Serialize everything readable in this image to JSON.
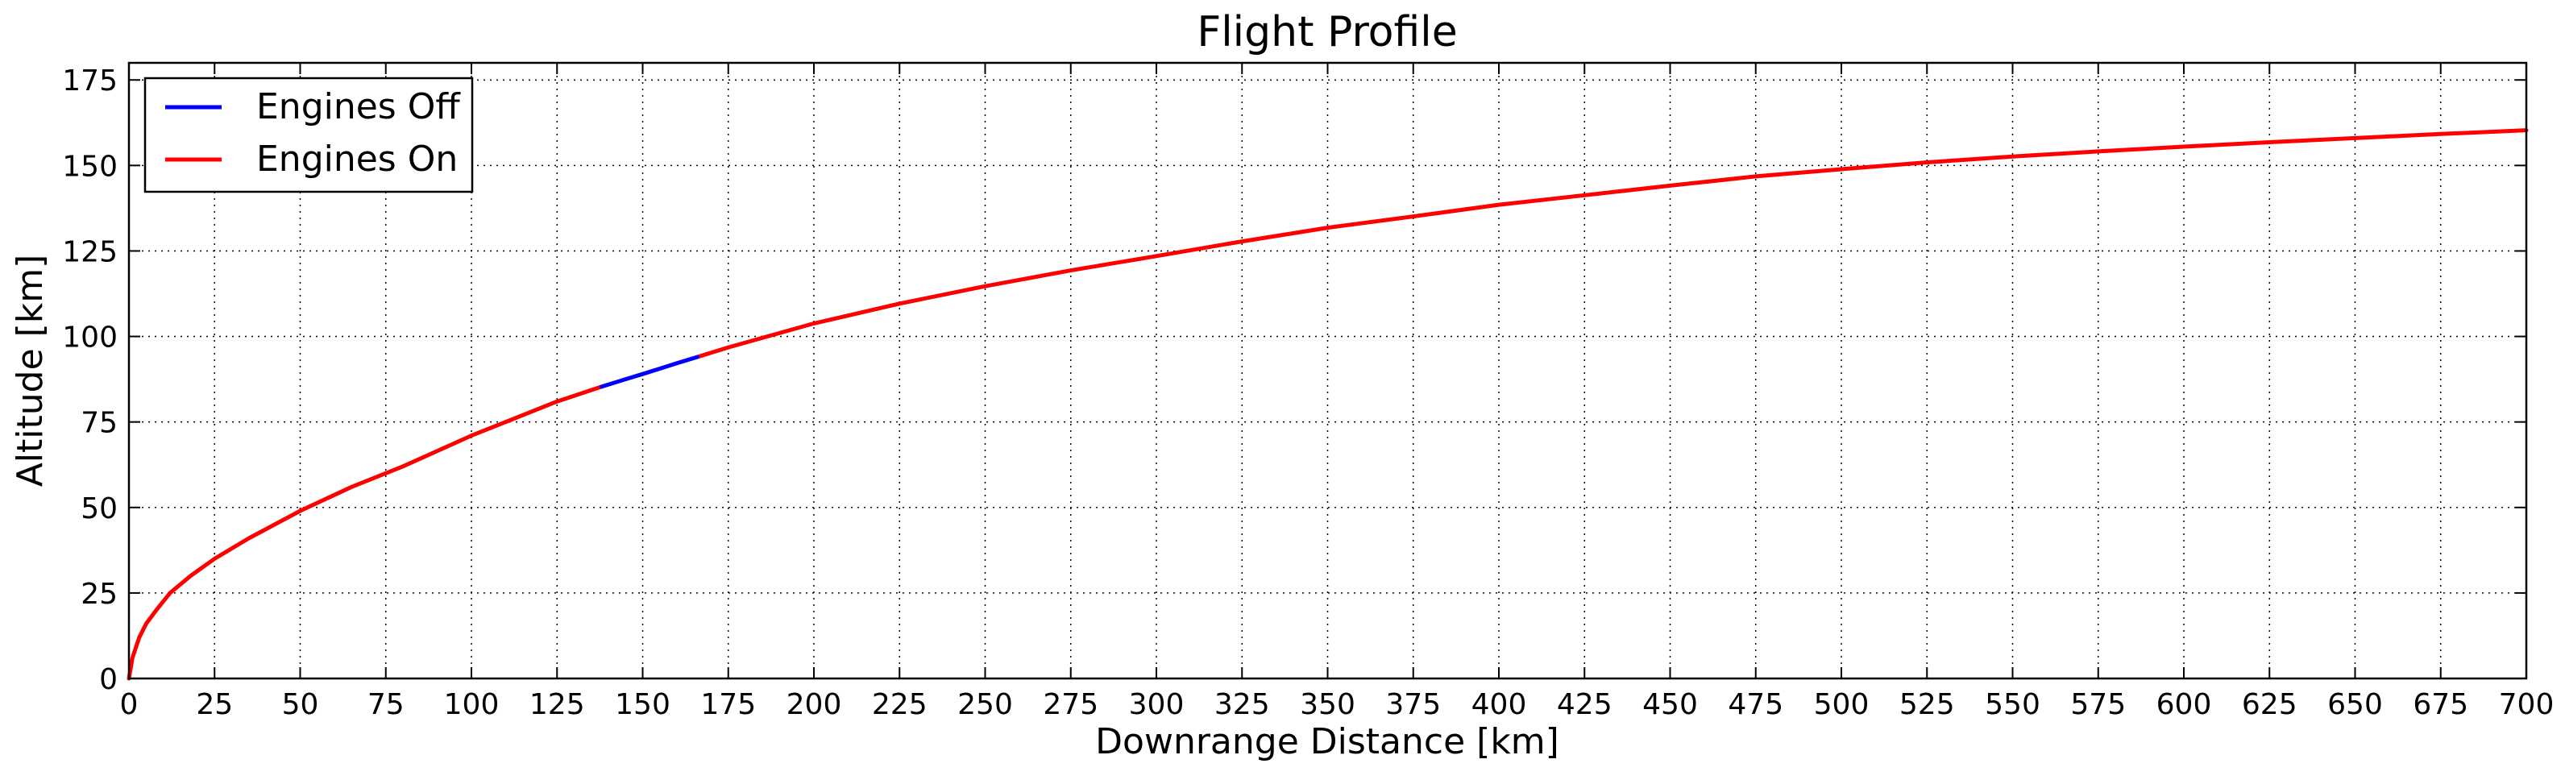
{
  "chart_data": {
    "type": "line",
    "title": "Flight Profile",
    "xlabel": "Downrange Distance [km]",
    "ylabel": "Altitude [km]",
    "xlim": [
      0,
      700
    ],
    "ylim": [
      0,
      180
    ],
    "xticks": [
      0,
      25,
      50,
      75,
      100,
      125,
      150,
      175,
      200,
      225,
      250,
      275,
      300,
      325,
      350,
      375,
      400,
      425,
      450,
      475,
      500,
      525,
      550,
      575,
      600,
      625,
      650,
      675,
      700
    ],
    "yticks": [
      0,
      25,
      50,
      75,
      100,
      125,
      150,
      175
    ],
    "grid": true,
    "grid_style": "dotted",
    "legend_position": "top-left",
    "series": [
      {
        "name": "Engines Off",
        "color": "#0000ff",
        "x": [
          138,
          145,
          150,
          155,
          160,
          166
        ],
        "y": [
          85.3,
          87.5,
          89.0,
          90.6,
          92.2,
          94.0
        ]
      },
      {
        "name": "Engines On",
        "color": "#ff0000",
        "segments": [
          {
            "x": [
              0,
              1,
              3,
              5,
              8,
              12,
              18,
              25,
              35,
              50,
              65,
              80,
              100,
              115,
              125,
              138
            ],
            "y": [
              0,
              6,
              12,
              16,
              20,
              25,
              30,
              35,
              41,
              49,
              56,
              62,
              71,
              77,
              81,
              85.3
            ]
          },
          {
            "x": [
              166,
              175,
              200,
              225,
              250,
              275,
              300,
              325,
              350,
              375,
              400,
              425,
              450,
              475,
              500,
              525,
              550,
              575,
              600,
              625,
              650,
              675,
              700
            ],
            "y": [
              94.0,
              96.8,
              103.8,
              109.6,
              114.7,
              119.3,
              123.5,
              127.8,
              131.8,
              135.1,
              138.5,
              141.3,
              144.1,
              146.8,
              148.9,
              150.9,
              152.6,
              154.1,
              155.5,
              156.8,
              158.0,
              159.2,
              160.3
            ]
          }
        ]
      }
    ]
  }
}
